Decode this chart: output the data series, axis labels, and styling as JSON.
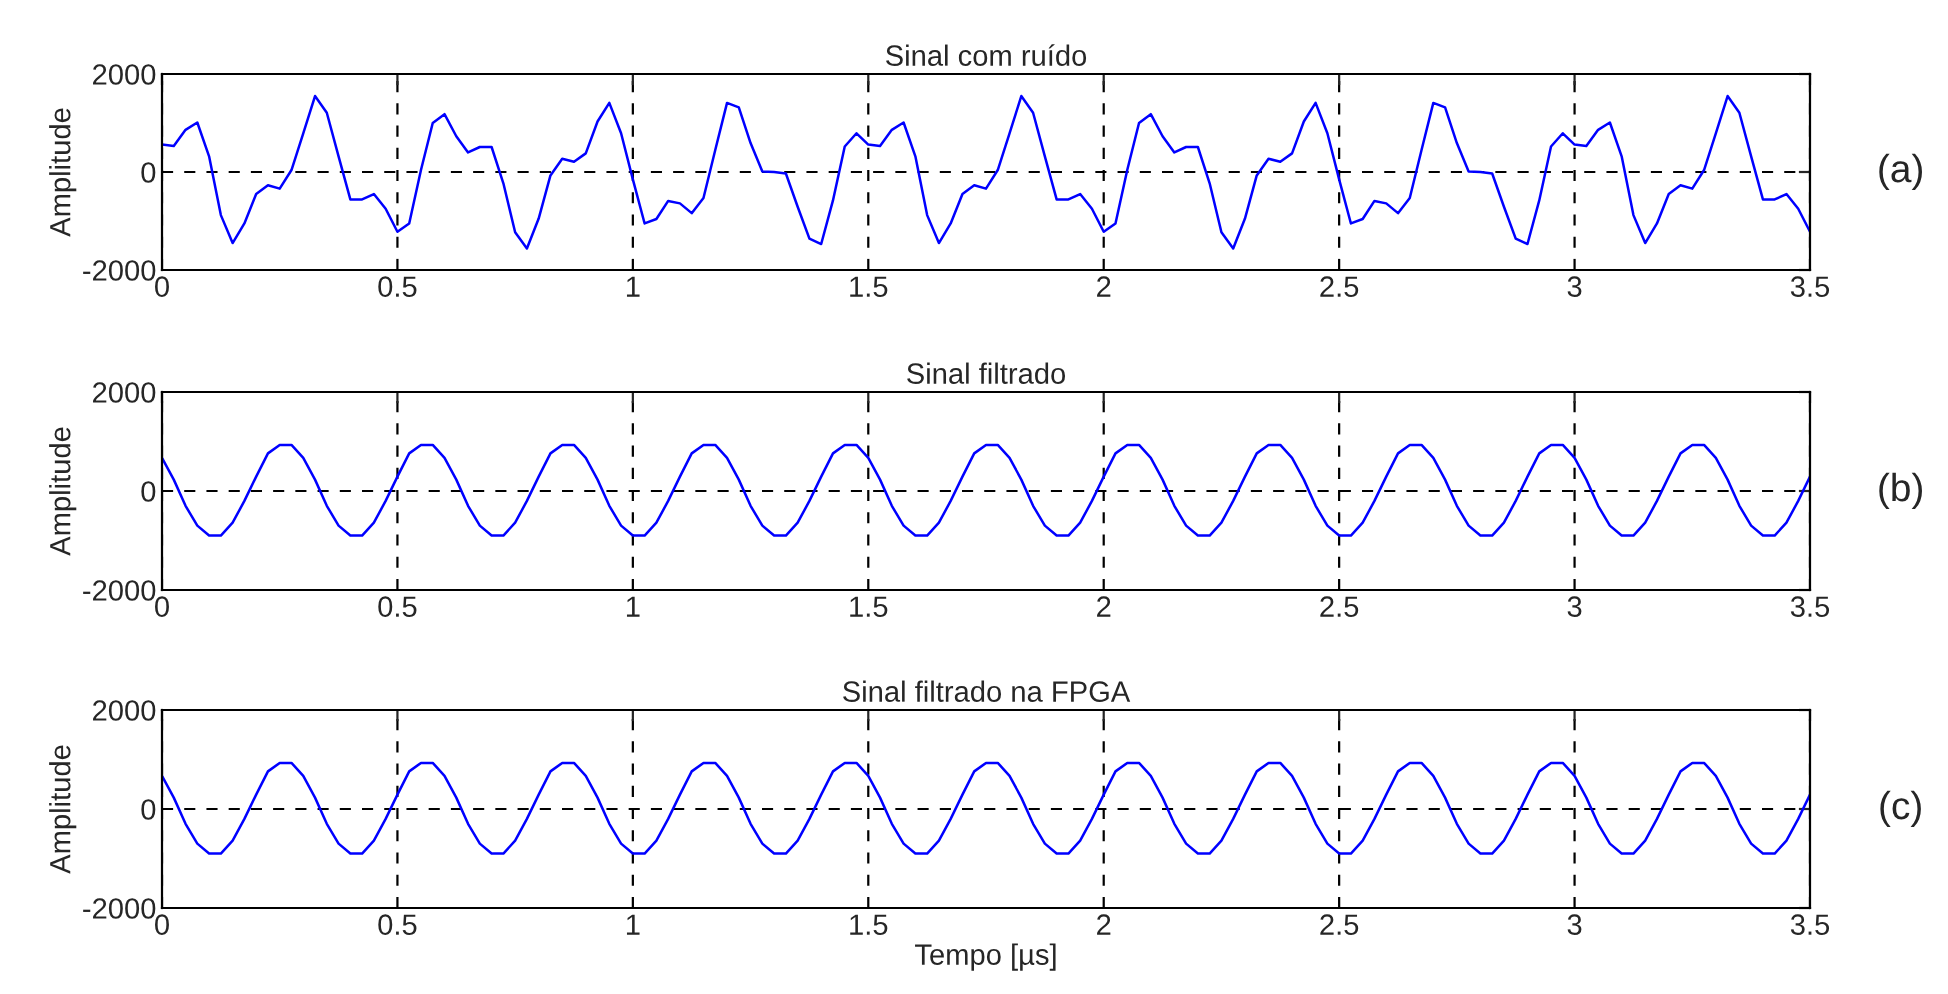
{
  "chart_data": [
    {
      "type": "line",
      "title": "Sinal com ruído",
      "ylabel": "Amplitude",
      "annotations": [
        "(a)"
      ],
      "xlim": [
        0,
        3.5
      ],
      "ylim": [
        -2000,
        2000
      ],
      "xticks": [
        0,
        0.5,
        1,
        1.5,
        2,
        2.5,
        3,
        3.5
      ],
      "yticks": [
        -2000,
        0,
        2000
      ],
      "grid": true,
      "x": [
        0,
        0.025,
        0.05,
        0.075,
        0.1,
        0.125,
        0.15,
        0.175,
        0.2,
        0.225,
        0.25,
        0.275,
        0.3,
        0.325,
        0.35,
        0.375,
        0.4,
        0.425,
        0.45,
        0.475,
        0.5,
        0.525,
        0.55,
        0.575,
        0.6,
        0.625,
        0.65,
        0.675,
        0.7,
        0.725,
        0.75,
        0.775,
        0.8,
        0.825,
        0.85,
        0.875,
        0.9,
        0.925,
        0.95,
        0.975,
        1,
        1.025,
        1.05,
        1.075,
        1.1,
        1.125,
        1.15,
        1.175,
        1.2,
        1.225,
        1.25,
        1.275,
        1.3,
        1.325,
        1.35,
        1.375,
        1.4,
        1.425,
        1.45,
        1.475,
        1.5,
        1.525,
        1.55,
        1.575,
        1.6,
        1.625,
        1.65,
        1.675,
        1.7,
        1.725,
        1.75,
        1.775,
        1.8,
        1.825,
        1.85,
        1.875,
        1.9,
        1.925,
        1.95,
        1.975,
        2,
        2.025,
        2.05,
        2.075,
        2.1,
        2.125,
        2.15,
        2.175,
        2.2,
        2.225,
        2.25,
        2.275,
        2.3,
        2.325,
        2.35,
        2.375,
        2.4,
        2.425,
        2.45,
        2.475,
        2.5,
        2.525,
        2.55,
        2.575,
        2.6,
        2.625,
        2.65,
        2.675,
        2.7,
        2.725,
        2.75,
        2.775,
        2.8,
        2.825,
        2.85,
        2.875,
        2.9,
        2.925,
        2.95,
        2.975,
        3,
        3.025,
        3.05,
        3.075,
        3.1,
        3.125,
        3.15,
        3.175,
        3.2,
        3.225,
        3.25,
        3.275,
        3.3,
        3.325,
        3.35,
        3.375,
        3.4,
        3.425,
        3.45,
        3.475,
        3.5
      ],
      "series": [
        {
          "color": "#0000ff",
          "values": [
            560,
            530,
            860,
            1010,
            320,
            -880,
            -1450,
            -1050,
            -450,
            -270,
            -340,
            40,
            790,
            1550,
            1210,
            320,
            -560,
            -560,
            -450,
            -750,
            -1220,
            -1050,
            40,
            1000,
            1180,
            730,
            400,
            510,
            510,
            -230,
            -1230,
            -1560,
            -950,
            -70,
            270,
            210,
            380,
            1030,
            1410,
            790,
            -150,
            -1050,
            -960,
            -590,
            -640,
            -840,
            -530,
            450,
            1410,
            1320,
            590,
            10,
            0,
            -30,
            -710,
            -1360,
            -1470,
            -580,
            520,
            790,
            560,
            530,
            860,
            1010,
            320,
            -880,
            -1450,
            -1050,
            -450,
            -270,
            -340,
            40,
            790,
            1550,
            1210,
            320,
            -560,
            -560,
            -450,
            -750,
            -1220,
            -1050,
            40,
            1000,
            1180,
            730,
            400,
            510,
            510,
            -230,
            -1230,
            -1560,
            -950,
            -70,
            270,
            210,
            380,
            1030,
            1410,
            790,
            -150,
            -1050,
            -960,
            -590,
            -640,
            -840,
            -530,
            450,
            1410,
            1320,
            590,
            10,
            0,
            -30,
            -710,
            -1360,
            -1470,
            -580,
            520,
            790,
            560,
            530,
            860,
            1010,
            320,
            -880,
            -1450,
            -1050,
            -450,
            -270,
            -340,
            40,
            790,
            1550,
            1210,
            320,
            -560,
            -560,
            -450,
            -750,
            -1220
          ]
        }
      ]
    },
    {
      "type": "line",
      "title": "Sinal filtrado",
      "ylabel": "Amplitude",
      "annotations": [
        "(b)"
      ],
      "xlim": [
        0,
        3.5
      ],
      "ylim": [
        -2000,
        2000
      ],
      "xticks": [
        0,
        0.5,
        1,
        1.5,
        2,
        2.5,
        3,
        3.5
      ],
      "yticks": [
        -2000,
        0,
        2000
      ],
      "grid": true,
      "x": [
        0,
        0.025,
        0.05,
        0.075,
        0.1,
        0.125,
        0.15,
        0.175,
        0.2,
        0.225,
        0.25,
        0.275,
        0.3,
        0.325,
        0.35,
        0.375,
        0.4,
        0.425,
        0.45,
        0.475,
        0.5,
        0.525,
        0.55,
        0.575,
        0.6,
        0.625,
        0.65,
        0.675,
        0.7,
        0.725,
        0.75,
        0.775,
        0.8,
        0.825,
        0.85,
        0.875,
        0.9,
        0.925,
        0.95,
        0.975,
        1,
        1.025,
        1.05,
        1.075,
        1.1,
        1.125,
        1.15,
        1.175,
        1.2,
        1.225,
        1.25,
        1.275,
        1.3,
        1.325,
        1.35,
        1.375,
        1.4,
        1.425,
        1.45,
        1.475,
        1.5,
        1.525,
        1.55,
        1.575,
        1.6,
        1.625,
        1.65,
        1.675,
        1.7,
        1.725,
        1.75,
        1.775,
        1.8,
        1.825,
        1.85,
        1.875,
        1.9,
        1.925,
        1.95,
        1.975,
        2,
        2.025,
        2.05,
        2.075,
        2.1,
        2.125,
        2.15,
        2.175,
        2.2,
        2.225,
        2.25,
        2.275,
        2.3,
        2.325,
        2.35,
        2.375,
        2.4,
        2.425,
        2.45,
        2.475,
        2.5,
        2.525,
        2.55,
        2.575,
        2.6,
        2.625,
        2.65,
        2.675,
        2.7,
        2.725,
        2.75,
        2.775,
        2.8,
        2.825,
        2.85,
        2.875,
        2.9,
        2.925,
        2.95,
        2.975,
        3,
        3.025,
        3.05,
        3.075,
        3.1,
        3.125,
        3.15,
        3.175,
        3.2,
        3.225,
        3.25,
        3.275,
        3.3,
        3.325,
        3.35,
        3.375,
        3.4,
        3.425,
        3.45,
        3.475,
        3.5
      ],
      "series": [
        {
          "color": "#0000ff",
          "values": [
            670,
            230,
            -300,
            -700,
            -900,
            -900,
            -640,
            -200,
            290,
            760,
            930,
            930,
            670,
            230,
            -300,
            -700,
            -900,
            -900,
            -640,
            -200,
            290,
            760,
            930,
            930,
            670,
            230,
            -300,
            -700,
            -900,
            -900,
            -640,
            -200,
            290,
            760,
            930,
            930,
            670,
            230,
            -300,
            -700,
            -900,
            -900,
            -640,
            -200,
            290,
            760,
            930,
            930,
            670,
            230,
            -300,
            -700,
            -900,
            -900,
            -640,
            -200,
            290,
            760,
            930,
            930,
            670,
            230,
            -300,
            -700,
            -900,
            -900,
            -640,
            -200,
            290,
            760,
            930,
            930,
            670,
            230,
            -300,
            -700,
            -900,
            -900,
            -640,
            -200,
            290,
            760,
            930,
            930,
            670,
            230,
            -300,
            -700,
            -900,
            -900,
            -640,
            -200,
            290,
            760,
            930,
            930,
            670,
            230,
            -300,
            -700,
            -900,
            -900,
            -640,
            -200,
            290,
            760,
            930,
            930,
            670,
            230,
            -300,
            -700,
            -900,
            -900,
            -640,
            -200,
            290,
            760,
            930,
            930,
            670,
            230,
            -300,
            -700,
            -900,
            -900,
            -640,
            -200,
            290,
            760,
            930,
            930,
            670,
            230,
            -300,
            -700,
            -900,
            -900,
            -640,
            -200,
            290
          ]
        }
      ]
    },
    {
      "type": "line",
      "title": "Sinal filtrado na FPGA",
      "xlabel": "Tempo [µs]",
      "ylabel": "Amplitude",
      "annotations": [
        "(c)"
      ],
      "xlim": [
        0,
        3.5
      ],
      "ylim": [
        -2000,
        2000
      ],
      "xticks": [
        0,
        0.5,
        1,
        1.5,
        2,
        2.5,
        3,
        3.5
      ],
      "yticks": [
        -2000,
        0,
        2000
      ],
      "grid": true,
      "x": [
        0,
        0.025,
        0.05,
        0.075,
        0.1,
        0.125,
        0.15,
        0.175,
        0.2,
        0.225,
        0.25,
        0.275,
        0.3,
        0.325,
        0.35,
        0.375,
        0.4,
        0.425,
        0.45,
        0.475,
        0.5,
        0.525,
        0.55,
        0.575,
        0.6,
        0.625,
        0.65,
        0.675,
        0.7,
        0.725,
        0.75,
        0.775,
        0.8,
        0.825,
        0.85,
        0.875,
        0.9,
        0.925,
        0.95,
        0.975,
        1,
        1.025,
        1.05,
        1.075,
        1.1,
        1.125,
        1.15,
        1.175,
        1.2,
        1.225,
        1.25,
        1.275,
        1.3,
        1.325,
        1.35,
        1.375,
        1.4,
        1.425,
        1.45,
        1.475,
        1.5,
        1.525,
        1.55,
        1.575,
        1.6,
        1.625,
        1.65,
        1.675,
        1.7,
        1.725,
        1.75,
        1.775,
        1.8,
        1.825,
        1.85,
        1.875,
        1.9,
        1.925,
        1.95,
        1.975,
        2,
        2.025,
        2.05,
        2.075,
        2.1,
        2.125,
        2.15,
        2.175,
        2.2,
        2.225,
        2.25,
        2.275,
        2.3,
        2.325,
        2.35,
        2.375,
        2.4,
        2.425,
        2.45,
        2.475,
        2.5,
        2.525,
        2.55,
        2.575,
        2.6,
        2.625,
        2.65,
        2.675,
        2.7,
        2.725,
        2.75,
        2.775,
        2.8,
        2.825,
        2.85,
        2.875,
        2.9,
        2.925,
        2.95,
        2.975,
        3,
        3.025,
        3.05,
        3.075,
        3.1,
        3.125,
        3.15,
        3.175,
        3.2,
        3.225,
        3.25,
        3.275,
        3.3,
        3.325,
        3.35,
        3.375,
        3.4,
        3.425,
        3.45,
        3.475,
        3.5
      ],
      "series": [
        {
          "color": "#0000ff",
          "values": [
            670,
            230,
            -300,
            -700,
            -900,
            -900,
            -640,
            -200,
            290,
            760,
            930,
            930,
            670,
            230,
            -300,
            -700,
            -900,
            -900,
            -640,
            -200,
            290,
            760,
            930,
            930,
            670,
            230,
            -300,
            -700,
            -900,
            -900,
            -640,
            -200,
            290,
            760,
            930,
            930,
            670,
            230,
            -300,
            -700,
            -900,
            -900,
            -640,
            -200,
            290,
            760,
            930,
            930,
            670,
            230,
            -300,
            -700,
            -900,
            -900,
            -640,
            -200,
            290,
            760,
            930,
            930,
            670,
            230,
            -300,
            -700,
            -900,
            -900,
            -640,
            -200,
            290,
            760,
            930,
            930,
            670,
            230,
            -300,
            -700,
            -900,
            -900,
            -640,
            -200,
            290,
            760,
            930,
            930,
            670,
            230,
            -300,
            -700,
            -900,
            -900,
            -640,
            -200,
            290,
            760,
            930,
            930,
            670,
            230,
            -300,
            -700,
            -900,
            -900,
            -640,
            -200,
            290,
            760,
            930,
            930,
            670,
            230,
            -300,
            -700,
            -900,
            -900,
            -640,
            -200,
            290,
            760,
            930,
            930,
            670,
            230,
            -300,
            -700,
            -900,
            -900,
            -640,
            -200,
            290,
            760,
            930,
            930,
            670,
            230,
            -300,
            -700,
            -900,
            -900,
            -640,
            -200,
            290
          ]
        }
      ]
    }
  ]
}
